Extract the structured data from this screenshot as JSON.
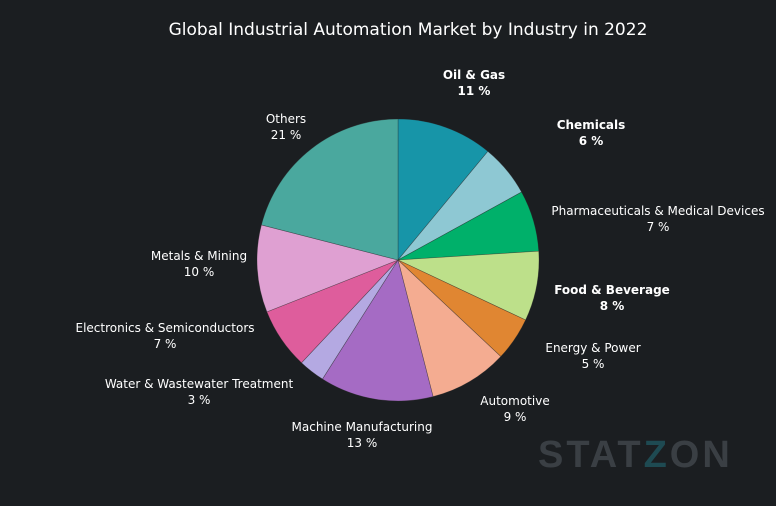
{
  "chart_data": {
    "type": "pie",
    "title": "Global Industrial Automation Market  by Industry in 2022",
    "unit": "%",
    "start_angle": "top",
    "direction": "clockwise",
    "slices": [
      {
        "label": "Oil & Gas",
        "value": 11,
        "color": "#1795a8"
      },
      {
        "label": "Chemicals",
        "value": 6,
        "color": "#8ec8d3"
      },
      {
        "label": "Pharmaceuticals & Medical Devices",
        "value": 7,
        "color": "#00b06a"
      },
      {
        "label": "Food & Beverage",
        "value": 8,
        "color": "#bde08a"
      },
      {
        "label": "Energy & Power",
        "value": 5,
        "color": "#e08632"
      },
      {
        "label": "Automotive",
        "value": 9,
        "color": "#f4ac91"
      },
      {
        "label": "Machine Manufacturing",
        "value": 13,
        "color": "#a56bc4"
      },
      {
        "label": "Water & Wastewater Treatment",
        "value": 3,
        "color": "#b4a9e2"
      },
      {
        "label": "Electronics & Semiconductors",
        "value": 7,
        "color": "#de5d9c"
      },
      {
        "label": "Metals & Mining",
        "value": 10,
        "color": "#dfa0d2"
      },
      {
        "label": "Others",
        "value": 21,
        "color": "#4aa89e"
      }
    ]
  },
  "watermark": "STATZON"
}
